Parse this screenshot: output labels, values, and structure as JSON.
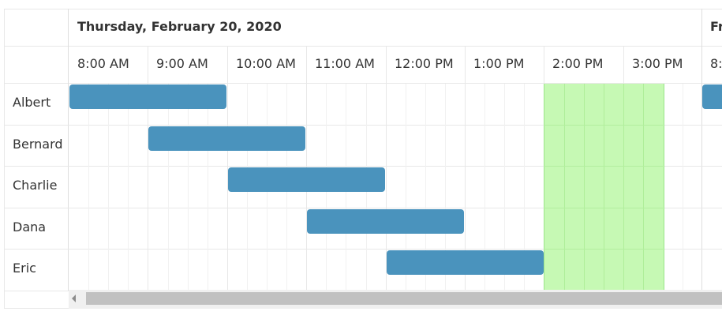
{
  "scheduler": {
    "dates": [
      {
        "label": "Thursday, February 20, 2020"
      },
      {
        "label": "Fr"
      }
    ],
    "hours": [
      "8:00 AM",
      "9:00 AM",
      "10:00 AM",
      "11:00 AM",
      "12:00 PM",
      "1:00 PM",
      "2:00 PM",
      "3:00 PM",
      "8:0"
    ],
    "resources": [
      {
        "name": "Albert"
      },
      {
        "name": "Bernard"
      },
      {
        "name": "Charlie"
      },
      {
        "name": "Dana"
      },
      {
        "name": "Eric"
      }
    ],
    "events": [
      {
        "resource": 0,
        "start_hour": 8,
        "end_hour": 10
      },
      {
        "resource": 1,
        "start_hour": 9,
        "end_hour": 11
      },
      {
        "resource": 2,
        "start_hour": 10,
        "end_hour": 12
      },
      {
        "resource": 3,
        "start_hour": 11,
        "end_hour": 13
      },
      {
        "resource": 4,
        "start_hour": 12,
        "end_hour": 14
      },
      {
        "resource": 0,
        "start_hour": 16,
        "end_hour": 16.5
      }
    ],
    "highlight": {
      "start_hour": 14,
      "end_hour": 15.5
    },
    "colors": {
      "event": "#4a93bd",
      "highlight": "#c6f9b4",
      "grid": "#e8e8e8"
    },
    "icons": {
      "scroll_left": "triangle-left-icon"
    }
  }
}
